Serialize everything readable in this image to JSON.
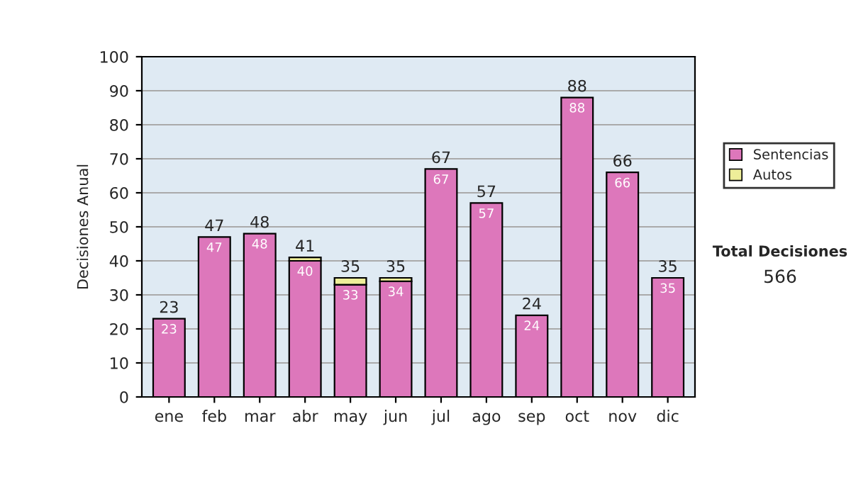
{
  "chart_data": {
    "type": "bar",
    "stacked": true,
    "ylabel": "Decisiones Anual",
    "categories": [
      "ene",
      "feb",
      "mar",
      "abr",
      "may",
      "jun",
      "jul",
      "ago",
      "sep",
      "oct",
      "nov",
      "dic"
    ],
    "series": [
      {
        "name": "Sentencias",
        "color": "#dd77bb",
        "values": [
          23,
          47,
          48,
          40,
          33,
          34,
          67,
          57,
          24,
          88,
          66,
          35
        ],
        "value_labels": [
          "23",
          "47",
          "48",
          "40",
          "33",
          "34",
          "67",
          "57",
          "24",
          "88",
          "66",
          "35"
        ]
      },
      {
        "name": "Autos",
        "color": "#eeee99",
        "values": [
          0,
          0,
          0,
          1,
          2,
          1,
          0,
          0,
          0,
          0,
          0,
          0
        ]
      }
    ],
    "totals": [
      "23",
      "47",
      "48",
      "41",
      "35",
      "35",
      "67",
      "57",
      "24",
      "88",
      "66",
      "35"
    ],
    "ylim": [
      0,
      100
    ],
    "yticks": [
      0,
      10,
      20,
      30,
      40,
      50,
      60,
      70,
      80,
      90,
      100
    ],
    "grid": "y",
    "legend": "right",
    "annotations": [
      "Total Decisiones",
      "566"
    ]
  }
}
